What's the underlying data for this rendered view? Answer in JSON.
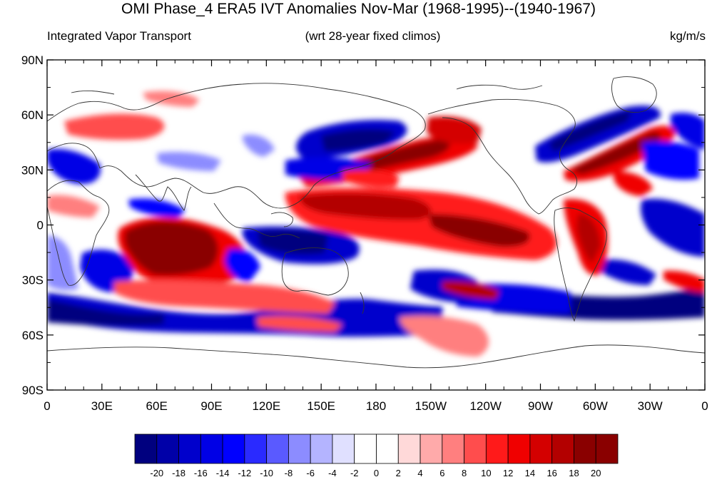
{
  "title": "OMI Phase_4 ERA5 IVT Anomalies Nov-Mar (1968-1995)--(1940-1967)",
  "left_string": "Integrated Vapor Transport",
  "center_string": "(wrt 28-year fixed climos)",
  "units": "kg/m/s",
  "lat_labels": [
    "90N",
    "60N",
    "30N",
    "0",
    "30S",
    "60S",
    "90S"
  ],
  "lon_labels": [
    "0",
    "30E",
    "60E",
    "90E",
    "120E",
    "150E",
    "180",
    "150W",
    "120W",
    "90W",
    "60W",
    "30W",
    "0"
  ],
  "colorbar": {
    "labels": [
      "-20",
      "-18",
      "-16",
      "-14",
      "-12",
      "-10",
      "-8",
      "-6",
      "-4",
      "-2",
      "0",
      "2",
      "4",
      "6",
      "8",
      "10",
      "12",
      "14",
      "16",
      "18",
      "20"
    ],
    "colors": [
      "#00007f",
      "#0000a8",
      "#0000cc",
      "#0000e6",
      "#0000ff",
      "#2a2aff",
      "#5a5aff",
      "#8c8cff",
      "#b4b4ff",
      "#e0e0ff",
      "#ffffff",
      "#ffffff",
      "#ffd9d9",
      "#ffaaaa",
      "#ff7f7f",
      "#ff4d4d",
      "#ff1a1a",
      "#f00000",
      "#d40000",
      "#b30000",
      "#8a0000"
    ]
  }
}
